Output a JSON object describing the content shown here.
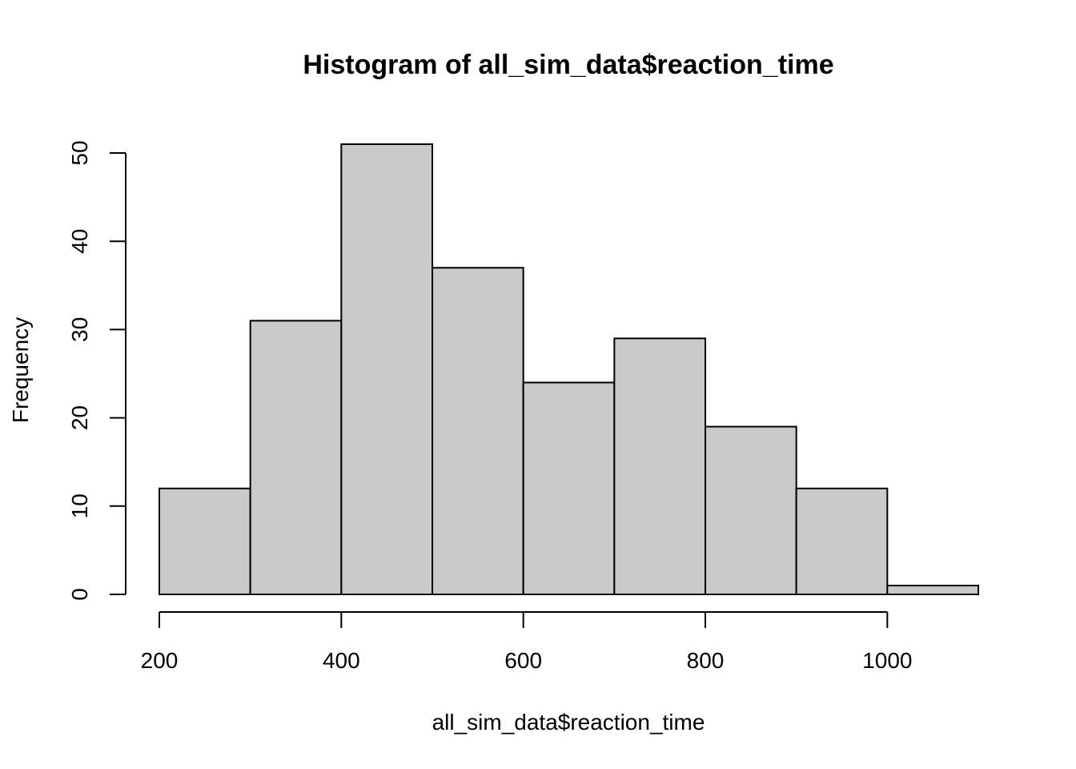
{
  "chart_data": {
    "type": "bar",
    "title": "Histogram of all_sim_data$reaction_time",
    "xlabel": "all_sim_data$reaction_time",
    "ylabel": "Frequency",
    "bins": [
      {
        "x0": 200,
        "x1": 300,
        "count": 12
      },
      {
        "x0": 300,
        "x1": 400,
        "count": 31
      },
      {
        "x0": 400,
        "x1": 500,
        "count": 51
      },
      {
        "x0": 500,
        "x1": 600,
        "count": 37
      },
      {
        "x0": 600,
        "x1": 700,
        "count": 24
      },
      {
        "x0": 700,
        "x1": 800,
        "count": 29
      },
      {
        "x0": 800,
        "x1": 900,
        "count": 19
      },
      {
        "x0": 900,
        "x1": 1000,
        "count": 12
      },
      {
        "x0": 1000,
        "x1": 1100,
        "count": 1
      }
    ],
    "xlim": [
      200,
      1100
    ],
    "ylim": [
      0,
      51
    ],
    "x_ticks": [
      200,
      400,
      600,
      800,
      1000
    ],
    "y_ticks": [
      0,
      10,
      20,
      30,
      40,
      50
    ],
    "colors": {
      "bar_fill": "#c9c9c9",
      "bar_stroke": "#000000"
    },
    "grid": false,
    "legend": "none"
  }
}
